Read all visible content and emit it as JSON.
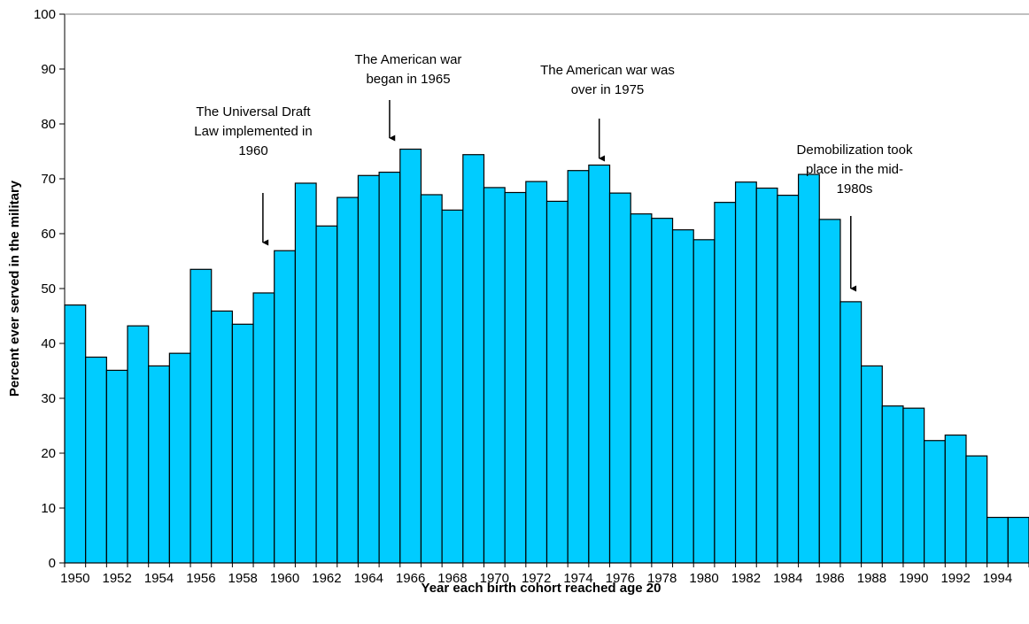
{
  "chart_data": {
    "type": "bar",
    "title": "",
    "xlabel": "Year each birth cohort reached age 20",
    "ylabel": "Percent ever served in the military",
    "ylim": [
      0,
      100
    ],
    "yticks": [
      0,
      10,
      20,
      30,
      40,
      50,
      60,
      70,
      80,
      90,
      100
    ],
    "grid": false,
    "bar_color": "#00CCFF",
    "categories": [
      1950,
      1951,
      1952,
      1953,
      1954,
      1955,
      1956,
      1957,
      1958,
      1959,
      1960,
      1961,
      1962,
      1963,
      1964,
      1965,
      1966,
      1967,
      1968,
      1969,
      1970,
      1971,
      1972,
      1973,
      1974,
      1975,
      1976,
      1977,
      1978,
      1979,
      1980,
      1981,
      1982,
      1983,
      1984,
      1985,
      1986,
      1987,
      1988,
      1989,
      1990,
      1991,
      1992,
      1993,
      1994,
      1995
    ],
    "xtick_labels": [
      "1950",
      "1952",
      "1954",
      "1956",
      "1958",
      "1960",
      "1962",
      "1964",
      "1966",
      "1968",
      "1970",
      "1972",
      "1974",
      "1976",
      "1978",
      "1980",
      "1982",
      "1984",
      "1986",
      "1988",
      "1990",
      "1992",
      "1994"
    ],
    "values": [
      47.0,
      37.5,
      35.1,
      43.2,
      35.9,
      38.2,
      53.5,
      45.9,
      43.5,
      49.2,
      56.9,
      69.2,
      61.4,
      66.6,
      70.6,
      71.2,
      75.4,
      67.1,
      64.3,
      74.4,
      68.4,
      67.5,
      69.5,
      65.9,
      71.5,
      72.5,
      67.4,
      63.6,
      62.8,
      60.7,
      58.9,
      65.7,
      69.4,
      68.3,
      67.0,
      70.8,
      62.6,
      47.6,
      35.9,
      28.6,
      28.2,
      22.3,
      23.3,
      19.5,
      8.3,
      8.3
    ],
    "annotations": [
      {
        "lines": [
          "The Universal Draft",
          "Law implemented in",
          "1960"
        ],
        "arrow_year": 1959
      },
      {
        "lines": [
          "The American war",
          "began in 1965"
        ],
        "arrow_year": 1965
      },
      {
        "lines": [
          "The American war was",
          "over in 1975"
        ],
        "arrow_year": 1975
      },
      {
        "lines": [
          "Demobilization took",
          "place in the mid-",
          "1980s"
        ],
        "arrow_year": 1987
      }
    ]
  }
}
